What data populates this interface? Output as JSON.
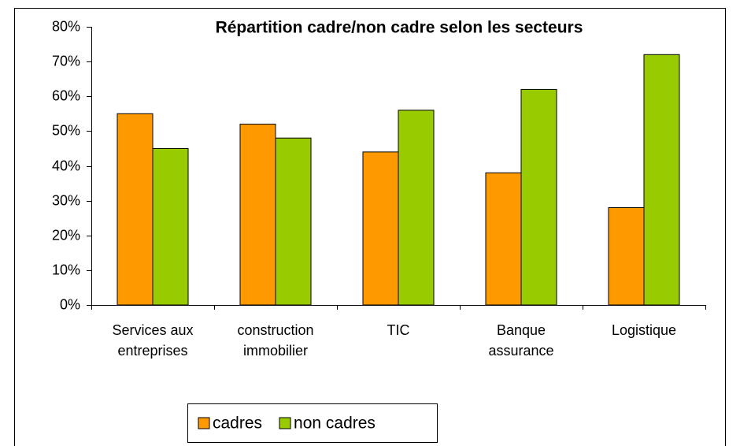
{
  "chart_data": {
    "type": "bar",
    "title": "Répartition cadre/non cadre selon les secteurs",
    "categories": [
      "Services aux entreprises",
      "construction immobilier",
      "TIC",
      "Banque assurance",
      "Logistique"
    ],
    "series": [
      {
        "name": "cadres",
        "color": "#ff9900",
        "values": [
          55,
          52,
          44,
          38,
          28
        ]
      },
      {
        "name": "non cadres",
        "color": "#99cc00",
        "values": [
          45,
          48,
          56,
          62,
          72
        ]
      }
    ],
    "ylim": [
      0,
      80
    ],
    "yticks": [
      {
        "value": 0,
        "label": "0%"
      },
      {
        "value": 10,
        "label": "10%"
      },
      {
        "value": 20,
        "label": "20%"
      },
      {
        "value": 30,
        "label": "30%"
      },
      {
        "value": 40,
        "label": "40%"
      },
      {
        "value": 50,
        "label": "50%"
      },
      {
        "value": 60,
        "label": "60%"
      },
      {
        "value": 70,
        "label": "70%"
      },
      {
        "value": 80,
        "label": "80%"
      }
    ],
    "grid": false,
    "legend": "bottom"
  }
}
